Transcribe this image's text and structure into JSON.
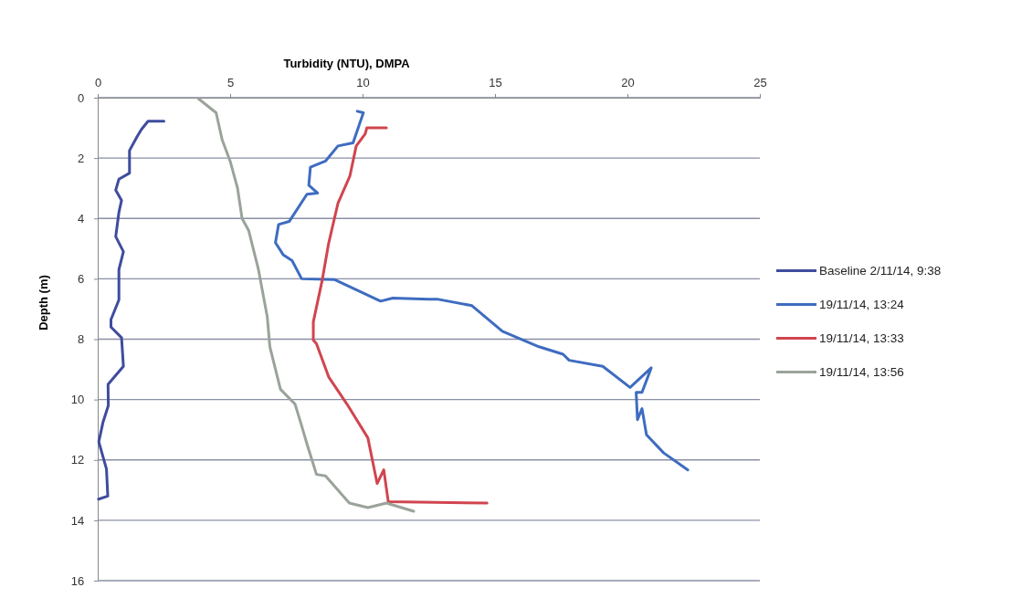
{
  "chart_data": {
    "type": "line",
    "xlabel": "Turbidity (NTU), DMPA",
    "ylabel": "Depth (m)",
    "xlim": [
      0,
      25
    ],
    "xticks": [
      0,
      5,
      10,
      15,
      20,
      25
    ],
    "ylim": [
      16,
      0
    ],
    "yticks": [
      0,
      2,
      4,
      6,
      8,
      10,
      12,
      14,
      16
    ],
    "grid": "y",
    "legend": "right",
    "series": [
      {
        "name": "Baseline 2/11/14, 9:38",
        "color": "#3f4c9e",
        "x": [
          2.5,
          1.9,
          1.65,
          1.48,
          1.2,
          1.2,
          0.8,
          0.68,
          0.9,
          0.8,
          0.68,
          0.97,
          0.8,
          0.8,
          0.5,
          0.5,
          0.9,
          0.97,
          0.39,
          0.4,
          0.2,
          0.04,
          0.33,
          0.38,
          0.03
        ],
        "values": [
          0.78,
          0.78,
          1.05,
          1.3,
          1.75,
          2.5,
          2.7,
          3.06,
          3.4,
          3.8,
          4.6,
          5.1,
          5.7,
          6.7,
          7.35,
          7.6,
          7.95,
          8.9,
          9.5,
          10.2,
          10.75,
          11.4,
          12.3,
          13.2,
          13.3
        ]
      },
      {
        "name": "19/11/14, 13:24",
        "color": "#3e6cc0",
        "x": [
          9.8,
          10.03,
          9.64,
          9.07,
          8.6,
          8.03,
          7.97,
          8.3,
          7.9,
          7.23,
          6.83,
          6.71,
          7.0,
          7.34,
          7.7,
          8.95,
          10.68,
          11.14,
          12.5,
          12.86,
          14.13,
          15.28,
          16.66,
          17.57,
          17.8,
          19.07,
          20.1,
          20.9,
          20.55,
          20.33,
          20.38,
          20.55,
          20.72,
          21.37,
          22.28
        ],
        "values": [
          0.45,
          0.5,
          1.5,
          1.6,
          2.1,
          2.3,
          2.9,
          3.16,
          3.2,
          4.1,
          4.2,
          4.8,
          5.2,
          5.4,
          6.0,
          6.03,
          6.74,
          6.64,
          6.68,
          6.68,
          6.89,
          7.74,
          8.25,
          8.5,
          8.7,
          8.9,
          9.6,
          8.95,
          9.76,
          9.76,
          10.67,
          10.3,
          11.17,
          11.77,
          12.33
        ]
      },
      {
        "name": "19/11/14, 13:33",
        "color": "#d0454f",
        "x": [
          10.9,
          10.16,
          10.1,
          9.76,
          9.52,
          9.07,
          8.72,
          8.48,
          8.14,
          8.14,
          8.26,
          8.72,
          9.41,
          10.2,
          10.55,
          10.8,
          10.97,
          14.7
        ],
        "values": [
          1.0,
          1.0,
          1.2,
          1.6,
          2.6,
          3.5,
          4.82,
          6.03,
          7.43,
          8.03,
          8.15,
          9.25,
          10.15,
          11.27,
          12.78,
          12.33,
          13.38,
          13.43
        ]
      },
      {
        "name": "19/11/14, 13:56",
        "color": "#9aa39a",
        "x": [
          3.8,
          4.47,
          4.7,
          5.0,
          5.28,
          5.45,
          5.7,
          6.07,
          6.4,
          6.5,
          6.9,
          7.45,
          7.7,
          7.9,
          8.26,
          8.6,
          9.5,
          10.2,
          10.9,
          11.93
        ],
        "values": [
          0.03,
          0.5,
          1.4,
          2.1,
          3.0,
          4.0,
          4.4,
          5.7,
          7.25,
          8.25,
          9.66,
          10.15,
          10.87,
          11.47,
          12.48,
          12.53,
          13.43,
          13.58,
          13.43,
          13.7
        ]
      }
    ]
  }
}
